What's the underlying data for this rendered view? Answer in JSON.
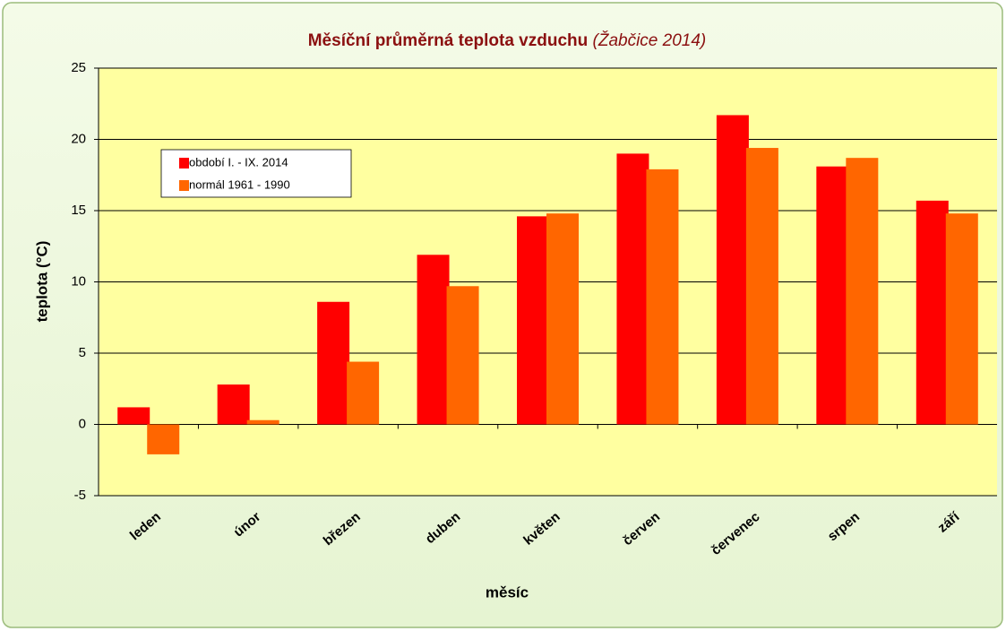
{
  "chart_data": {
    "type": "bar",
    "title": "Měsíční průměrná teplota vzduchu",
    "subtitle": "(Žabčice 2014)",
    "x_label": "měsíc",
    "y_label": "teplota  (°C)",
    "categories": [
      "leden",
      "únor",
      "březen",
      "duben",
      "květen",
      "červen",
      "červenec",
      "srpen",
      "září"
    ],
    "series": [
      {
        "name": "období I. - IX. 2014",
        "color": "#ff0000",
        "values": [
          1.2,
          2.8,
          8.6,
          11.9,
          14.6,
          19.0,
          21.7,
          18.1,
          15.7
        ]
      },
      {
        "name": "normál 1961 - 1990",
        "color": "#ff6600",
        "values": [
          -2.1,
          0.3,
          4.4,
          9.7,
          14.8,
          17.9,
          19.4,
          18.7,
          14.8
        ]
      }
    ],
    "ylim": [
      -5,
      25
    ],
    "yticks": [
      -5,
      0,
      5,
      10,
      15,
      20,
      25
    ],
    "grid": true,
    "legend": "upper left"
  }
}
